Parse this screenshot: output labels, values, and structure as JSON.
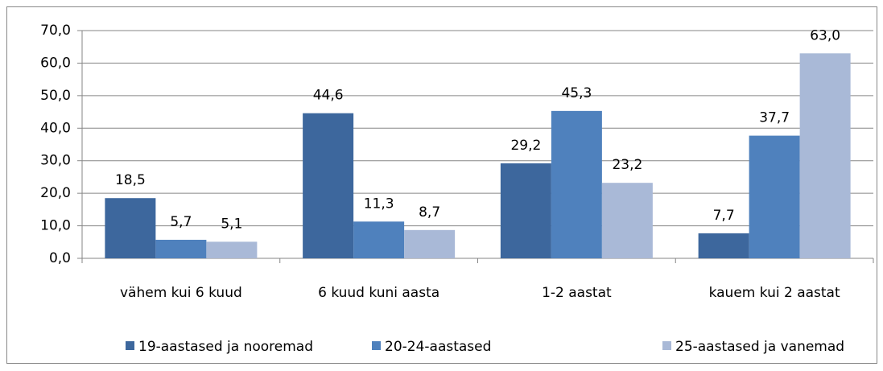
{
  "chart_data": {
    "type": "bar",
    "categories": [
      "vähem kui 6 kuud",
      "6 kuud kuni aasta",
      "1-2 aastat",
      "kauem kui 2 aastat"
    ],
    "series": [
      {
        "name": "19-aastased ja nooremad",
        "color": "#3d679d",
        "values": [
          18.5,
          44.6,
          29.2,
          7.7
        ],
        "value_labels": [
          "18,5",
          "44,6",
          "29,2",
          "7,7"
        ]
      },
      {
        "name": "20-24-aastased",
        "color": "#4f81bd",
        "values": [
          5.7,
          11.3,
          45.3,
          37.7
        ],
        "value_labels": [
          "5,7",
          "11,3",
          "45,3",
          "37,7"
        ]
      },
      {
        "name": "25-aastased ja vanemad",
        "color": "#a9b9d7",
        "values": [
          5.1,
          8.7,
          23.2,
          63.0
        ],
        "value_labels": [
          "5,1",
          "8,7",
          "23,2",
          "63,0"
        ]
      }
    ],
    "ylim": [
      0,
      70
    ],
    "yticks": [
      {
        "value": 0,
        "label": "0,0"
      },
      {
        "value": 10,
        "label": "10,0"
      },
      {
        "value": 20,
        "label": "20,0"
      },
      {
        "value": 30,
        "label": "30,0"
      },
      {
        "value": 40,
        "label": "40,0"
      },
      {
        "value": 50,
        "label": "50,0"
      },
      {
        "value": 60,
        "label": "60,0"
      },
      {
        "value": 70,
        "label": "70,0"
      }
    ],
    "grid": true,
    "legend": "bottom"
  }
}
